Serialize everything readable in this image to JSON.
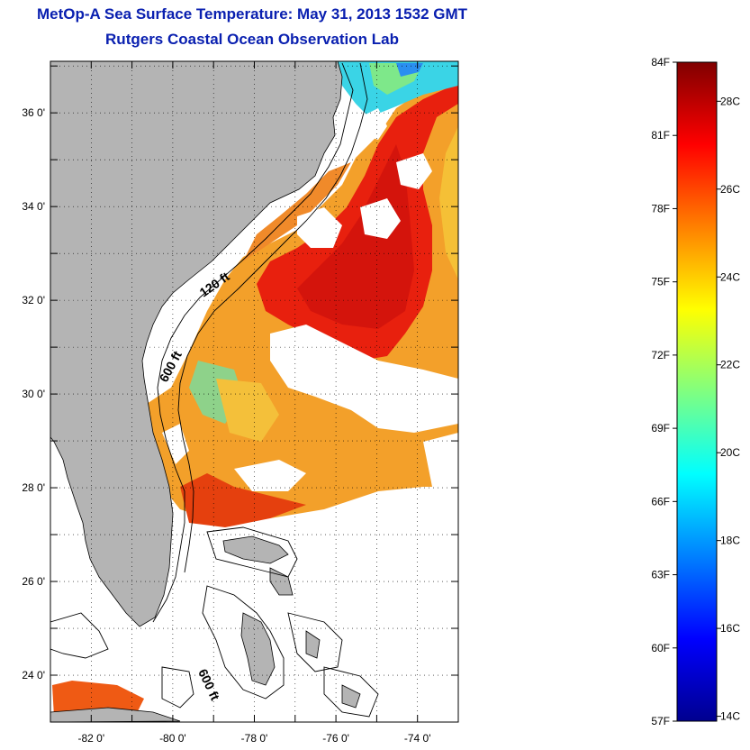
{
  "title": {
    "line1": "MetOp-A Sea Surface Temperature:  May 31, 2013 1532 GMT",
    "line2": "Rutgers Coastal Ocean Observation Lab"
  },
  "map": {
    "lat_range": [
      23,
      37.1
    ],
    "lon_range": [
      -83,
      -73
    ],
    "lat_ticks": [
      {
        "value": 24,
        "label": "24 0'"
      },
      {
        "value": 26,
        "label": "26 0'"
      },
      {
        "value": 28,
        "label": "28 0'"
      },
      {
        "value": 30,
        "label": "30 0'"
      },
      {
        "value": 32,
        "label": "32 0'"
      },
      {
        "value": 34,
        "label": "34 0'"
      },
      {
        "value": 36,
        "label": "36 0'"
      }
    ],
    "lon_ticks": [
      {
        "value": -82,
        "label": "-82 0'"
      },
      {
        "value": -80,
        "label": "-80 0'"
      },
      {
        "value": -78,
        "label": "-78 0'"
      },
      {
        "value": -76,
        "label": "-76 0'"
      },
      {
        "value": -74,
        "label": "-74 0'"
      }
    ],
    "grid": "dotted",
    "contour_labels": [
      "120 ft",
      "600 ft",
      "600 ft"
    ],
    "colors": {
      "land": "#b4b4b4",
      "cloud": "#ffffff"
    }
  },
  "colorbar": {
    "fahrenheit": [
      {
        "value": 84,
        "label": "84F"
      },
      {
        "value": 81,
        "label": "81F"
      },
      {
        "value": 78,
        "label": "78F"
      },
      {
        "value": 75,
        "label": "75F"
      },
      {
        "value": 72,
        "label": "72F"
      },
      {
        "value": 69,
        "label": "69F"
      },
      {
        "value": 66,
        "label": "66F"
      },
      {
        "value": 63,
        "label": "63F"
      },
      {
        "value": 60,
        "label": "60F"
      },
      {
        "value": 57,
        "label": "57F"
      }
    ],
    "celsius": [
      {
        "value": 28,
        "label": "28C"
      },
      {
        "value": 26,
        "label": "26C"
      },
      {
        "value": 24,
        "label": "24C"
      },
      {
        "value": 22,
        "label": "22C"
      },
      {
        "value": 20,
        "label": "20C"
      },
      {
        "value": 18,
        "label": "18C"
      },
      {
        "value": 16,
        "label": "16C"
      },
      {
        "value": 14,
        "label": "14C"
      }
    ],
    "min_f": 57,
    "max_f": 84,
    "colormap": [
      "#00008f",
      "#0000ff",
      "#0080ff",
      "#00ffff",
      "#80ff80",
      "#ffff00",
      "#ff8000",
      "#ff0000",
      "#800000"
    ]
  }
}
